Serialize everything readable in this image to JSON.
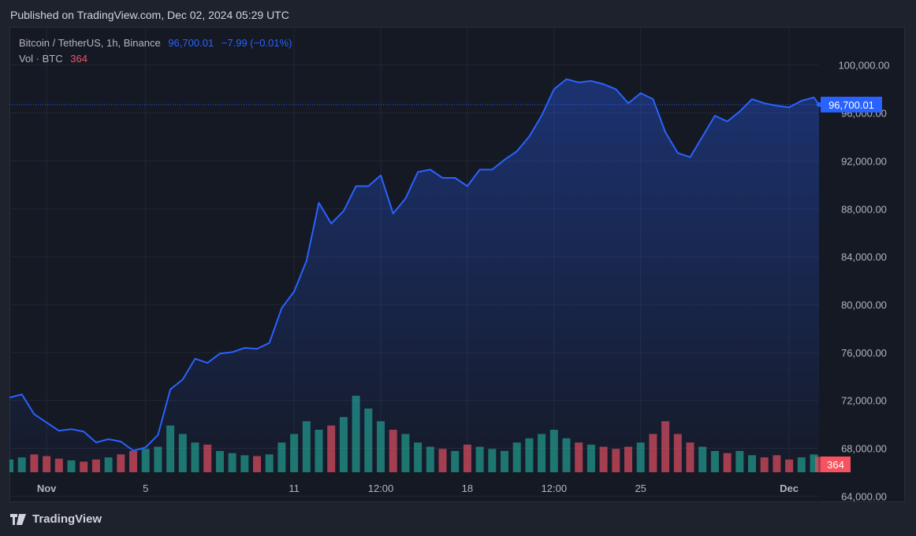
{
  "header": {
    "published": "Published on TradingView.com, Dec 02, 2024 05:29 UTC"
  },
  "legend": {
    "symbol": "Bitcoin / TetherUS, 1h, Binance",
    "price": "96,700.01",
    "change": "−7.99 (−0.01%)",
    "volume_label": "Vol · BTC",
    "volume_value": "364"
  },
  "footer": {
    "brand": "TradingView",
    "logo_icon": "tradingview-logo-icon"
  },
  "colors": {
    "line": "#2962ff",
    "up": "#22ab94",
    "down": "#f7525f",
    "background": "#151924",
    "grid": "#232734"
  },
  "chart_data": {
    "type": "area",
    "title": "Bitcoin / TetherUS, 1h, Binance",
    "y_ticks": [
      "100,000.00",
      "96,000.00",
      "92,000.00",
      "88,000.00",
      "84,000.00",
      "80,000.00",
      "76,000.00",
      "72,000.00",
      "68,000.00",
      "64,000.00"
    ],
    "y_tick_values": [
      100000,
      96000,
      92000,
      88000,
      84000,
      80000,
      76000,
      72000,
      68000,
      64000
    ],
    "ylim": [
      63500,
      103200
    ],
    "x_ticks": [
      {
        "label": "Nov",
        "t": "2024-11-01 00:00"
      },
      {
        "label": "5",
        "t": "2024-11-05 00:00"
      },
      {
        "label": "11",
        "t": "2024-11-11 00:00"
      },
      {
        "label": "12:00",
        "t": "2024-11-14 12:00"
      },
      {
        "label": "18",
        "t": "2024-11-18 00:00"
      },
      {
        "label": "12:00",
        "t": "2024-11-21 12:00"
      },
      {
        "label": "25",
        "t": "2024-11-25 00:00"
      },
      {
        "label": "Dec",
        "t": "2024-12-01 00:00"
      }
    ],
    "grid": true,
    "last_price": 96700.01,
    "last_price_label": "96,700.01",
    "last_volume": 364,
    "last_volume_label": "364",
    "x": [
      "2024-10-30 12:00",
      "2024-10-31 00:00",
      "2024-10-31 12:00",
      "2024-11-01 00:00",
      "2024-11-01 12:00",
      "2024-11-02 00:00",
      "2024-11-02 12:00",
      "2024-11-03 00:00",
      "2024-11-03 12:00",
      "2024-11-04 00:00",
      "2024-11-04 12:00",
      "2024-11-05 00:00",
      "2024-11-05 12:00",
      "2024-11-06 00:00",
      "2024-11-06 12:00",
      "2024-11-07 00:00",
      "2024-11-07 12:00",
      "2024-11-08 00:00",
      "2024-11-08 12:00",
      "2024-11-09 00:00",
      "2024-11-09 12:00",
      "2024-11-10 00:00",
      "2024-11-10 12:00",
      "2024-11-11 00:00",
      "2024-11-11 12:00",
      "2024-11-12 00:00",
      "2024-11-12 12:00",
      "2024-11-13 00:00",
      "2024-11-13 12:00",
      "2024-11-14 00:00",
      "2024-11-14 12:00",
      "2024-11-15 00:00",
      "2024-11-15 12:00",
      "2024-11-16 00:00",
      "2024-11-16 12:00",
      "2024-11-17 00:00",
      "2024-11-17 12:00",
      "2024-11-18 00:00",
      "2024-11-18 12:00",
      "2024-11-19 00:00",
      "2024-11-19 12:00",
      "2024-11-20 00:00",
      "2024-11-20 12:00",
      "2024-11-21 00:00",
      "2024-11-21 12:00",
      "2024-11-22 00:00",
      "2024-11-22 12:00",
      "2024-11-23 00:00",
      "2024-11-23 12:00",
      "2024-11-24 00:00",
      "2024-11-24 12:00",
      "2024-11-25 00:00",
      "2024-11-25 12:00",
      "2024-11-26 00:00",
      "2024-11-26 12:00",
      "2024-11-27 00:00",
      "2024-11-27 12:00",
      "2024-11-28 00:00",
      "2024-11-28 12:00",
      "2024-11-29 00:00",
      "2024-11-29 12:00",
      "2024-11-30 00:00",
      "2024-11-30 12:00",
      "2024-12-01 00:00",
      "2024-12-01 12:00",
      "2024-12-02 00:00",
      "2024-12-02 05:00"
    ],
    "series": [
      {
        "values": [
          72230,
          72500,
          70840,
          70150,
          69460,
          69600,
          69390,
          68490,
          68760,
          68560,
          67800,
          68070,
          69110,
          72920,
          73750,
          75480,
          75130,
          75900,
          76030,
          76380,
          76310,
          76800,
          79710,
          81090,
          83650,
          88500,
          86770,
          87810,
          89890,
          89890,
          90790,
          87600,
          88850,
          91070,
          91270,
          90580,
          90580,
          89890,
          91270,
          91270,
          92100,
          92800,
          94040,
          95770,
          97990,
          98820,
          98550,
          98680,
          98410,
          97990,
          96810,
          97650,
          97160,
          94390,
          92660,
          92310,
          94040,
          95770,
          95290,
          96120,
          97160,
          96810,
          96600,
          96470,
          97020,
          97300,
          96700.01
        ]
      }
    ],
    "volume": [
      300,
      350,
      420,
      380,
      320,
      280,
      250,
      300,
      350,
      420,
      500,
      550,
      600,
      1100,
      900,
      700,
      650,
      500,
      450,
      400,
      380,
      420,
      700,
      900,
      1200,
      1000,
      1100,
      1300,
      1800,
      1500,
      1200,
      1000,
      900,
      700,
      600,
      550,
      500,
      650,
      600,
      550,
      500,
      700,
      800,
      900,
      1000,
      800,
      700,
      650,
      600,
      550,
      600,
      700,
      900,
      1200,
      900,
      700,
      600,
      500,
      450,
      500,
      400,
      350,
      400,
      300,
      350,
      420,
      364
    ]
  }
}
